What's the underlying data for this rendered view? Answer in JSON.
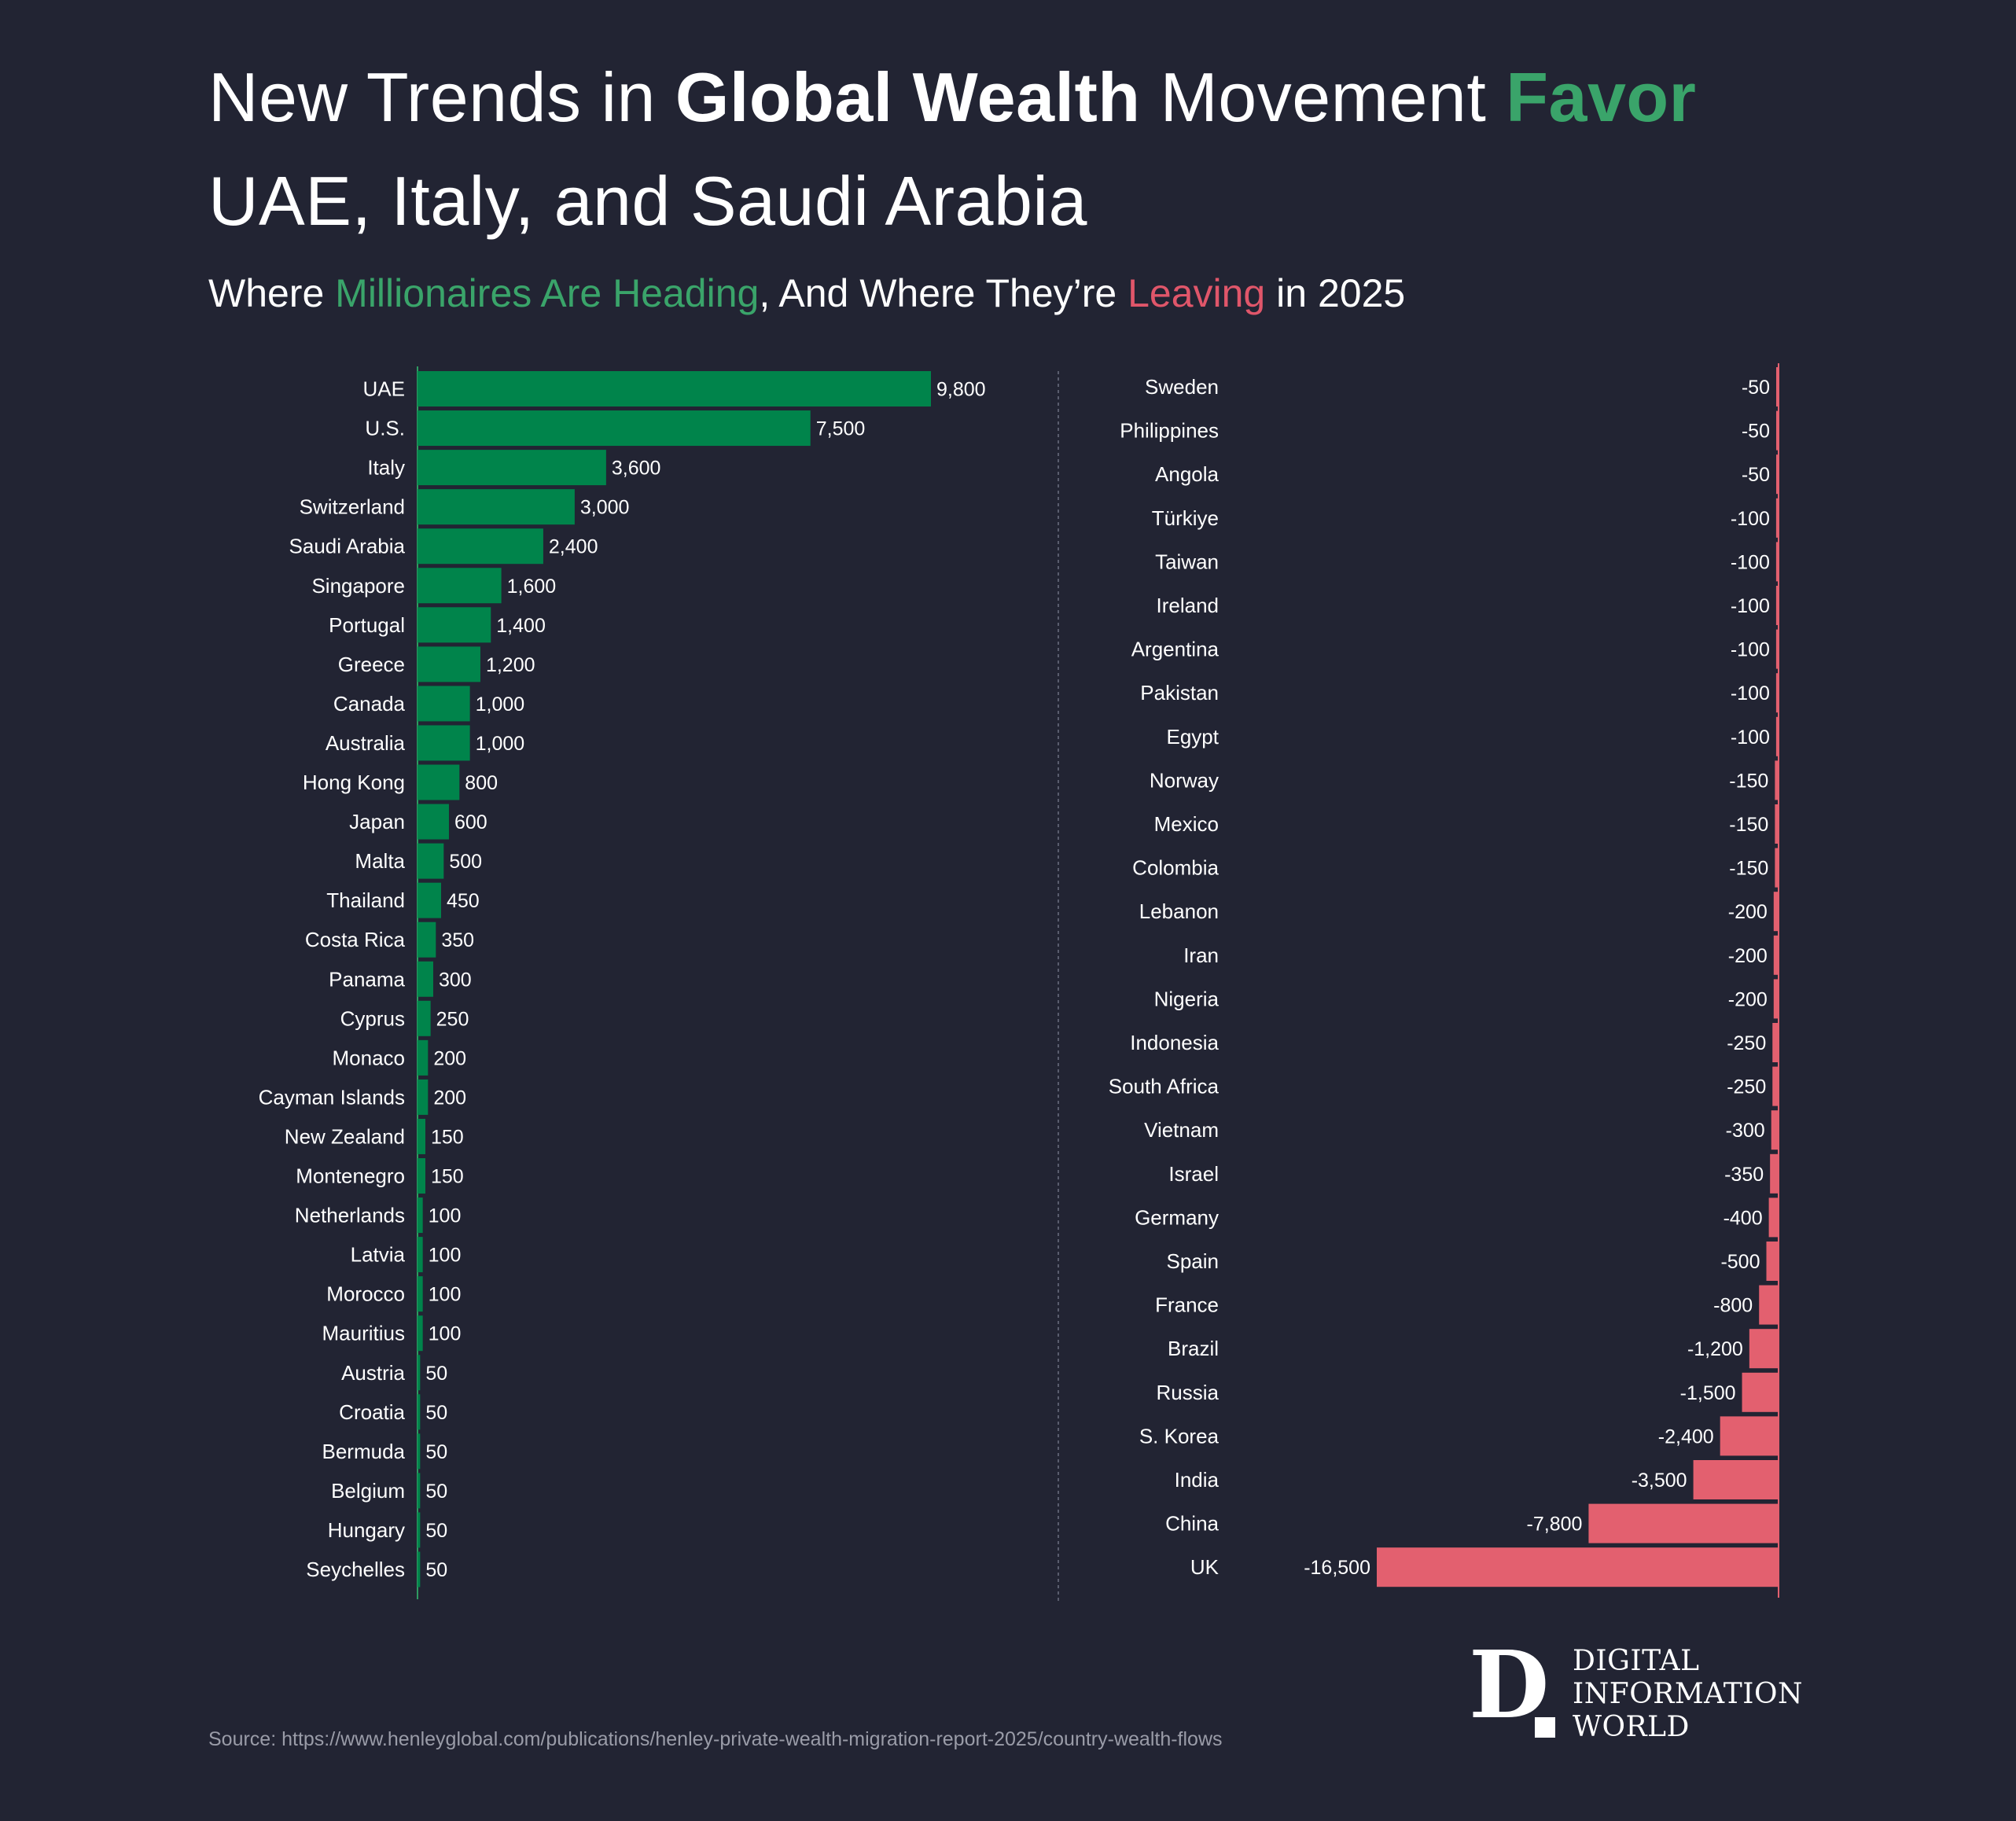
{
  "header": {
    "title_part1": "New Trends in ",
    "title_bold": "Global Wealth",
    "title_part2": " Movement ",
    "title_green": "Favor",
    "title_line2": "UAE, Italy, and Saudi Arabia",
    "subtitle_part1": "Where ",
    "subtitle_green": "Millionaires Are Heading",
    "subtitle_part2": ", And Where They’re ",
    "subtitle_red": "Leaving",
    "subtitle_part3": " in 2025"
  },
  "colors": {
    "background": "#222433",
    "inflow": "#00844b",
    "outflow": "#e3606f",
    "accent_green": "#3aa46a",
    "accent_red": "#e0566a"
  },
  "chart_data": [
    {
      "type": "bar",
      "orientation": "horizontal",
      "categories": [
        "UAE",
        "U.S.",
        "Italy",
        "Switzerland",
        "Saudi Arabia",
        "Singapore",
        "Portugal",
        "Greece",
        "Canada",
        "Australia",
        "Hong Kong",
        "Japan",
        "Malta",
        "Thailand",
        "Costa Rica",
        "Panama",
        "Cyprus",
        "Monaco",
        "Cayman Islands",
        "New Zealand",
        "Montenegro",
        "Netherlands",
        "Latvia",
        "Morocco",
        "Mauritius",
        "Austria",
        "Croatia",
        "Bermuda",
        "Belgium",
        "Hungary",
        "Seychelles"
      ],
      "values": [
        9800,
        7500,
        3600,
        3000,
        2400,
        1600,
        1400,
        1200,
        1000,
        1000,
        800,
        600,
        500,
        450,
        350,
        300,
        250,
        200,
        200,
        150,
        150,
        100,
        100,
        100,
        100,
        50,
        50,
        50,
        50,
        50,
        50
      ],
      "labels": [
        "9,800",
        "7,500",
        "3,600",
        "3,000",
        "2,400",
        "1,600",
        "1,400",
        "1,200",
        "1,000",
        "1,000",
        "800",
        "600",
        "500",
        "450",
        "350",
        "300",
        "250",
        "200",
        "200",
        "150",
        "150",
        "100",
        "100",
        "100",
        "100",
        "50",
        "50",
        "50",
        "50",
        "50",
        "50"
      ],
      "title": "",
      "xlabel": "",
      "ylabel": "",
      "xlim": [
        0,
        9800
      ]
    },
    {
      "type": "bar",
      "orientation": "horizontal",
      "categories": [
        "Sweden",
        "Philippines",
        "Angola",
        "Türkiye",
        "Taiwan",
        "Ireland",
        "Argentina",
        "Pakistan",
        "Egypt",
        "Norway",
        "Mexico",
        "Colombia",
        "Lebanon",
        "Iran",
        "Nigeria",
        "Indonesia",
        "South Africa",
        "Vietnam",
        "Israel",
        "Germany",
        "Spain",
        "France",
        "Brazil",
        "Russia",
        "S. Korea",
        "India",
        "China",
        "UK"
      ],
      "values": [
        -50,
        -50,
        -50,
        -100,
        -100,
        -100,
        -100,
        -100,
        -100,
        -150,
        -150,
        -150,
        -200,
        -200,
        -200,
        -250,
        -250,
        -300,
        -350,
        -400,
        -500,
        -800,
        -1200,
        -1500,
        -2400,
        -3500,
        -7800,
        -16500
      ],
      "labels": [
        "-50",
        "-50",
        "-50",
        "-100",
        "-100",
        "-100",
        "-100",
        "-100",
        "-100",
        "-150",
        "-150",
        "-150",
        "-200",
        "-200",
        "-200",
        "-250",
        "-250",
        "-300",
        "-350",
        "-400",
        "-500",
        "-800",
        "-1,200",
        "-1,500",
        "-2,400",
        "-3,500",
        "-7,800",
        "-16,500"
      ],
      "title": "",
      "xlabel": "",
      "ylabel": "",
      "xlim": [
        -16500,
        0
      ]
    }
  ],
  "source": "Source: https://www.henleyglobal.com/publications/henley-private-wealth-migration-report-2025/country-wealth-flows",
  "logo": {
    "mark": "D",
    "lines": [
      "DIGITAL",
      "INFORMATION",
      "WORLD"
    ]
  }
}
